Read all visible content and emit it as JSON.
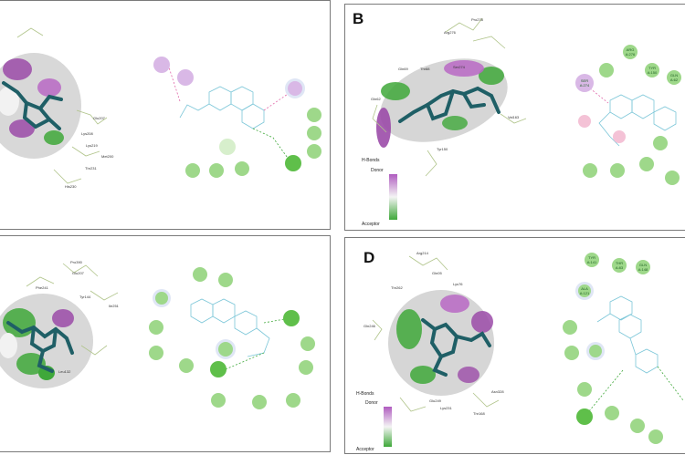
{
  "panels": {
    "A": {
      "letter": ""
    },
    "B": {
      "letter": "B",
      "legend": {
        "title": "H-Bonds",
        "top": "Donor",
        "bottom": "Acceptor"
      },
      "residue_labels": [
        "Arg276",
        "Pro278",
        "Gln69",
        "Thr88",
        "Gln62",
        "Ser274",
        "Tyr150",
        "Val163"
      ],
      "nodes": [
        "ARG A:276",
        "TYR A:150",
        "GLN A:62",
        "SER A:274"
      ]
    },
    "C": {
      "letter": ""
    },
    "D": {
      "letter": "D",
      "legend": {
        "title": "H-Bonds",
        "top": "Donor",
        "bottom": "Acceptor"
      },
      "residue_labels": [
        "Arg214",
        "Gln05",
        "Lys76",
        "Thr262",
        "Gln246",
        "Glu249",
        "Lys231",
        "Asn328",
        "Thr168"
      ],
      "nodes": [
        "TYR A:141",
        "THR A:83",
        "GLN A:148",
        "ALA A:121"
      ]
    }
  },
  "colors": {
    "bond": "#1f5f66",
    "node": "#7ccc5f",
    "donor": "#b05cc0",
    "acceptor": "#3fa83a",
    "hbond": "#e066a8"
  }
}
